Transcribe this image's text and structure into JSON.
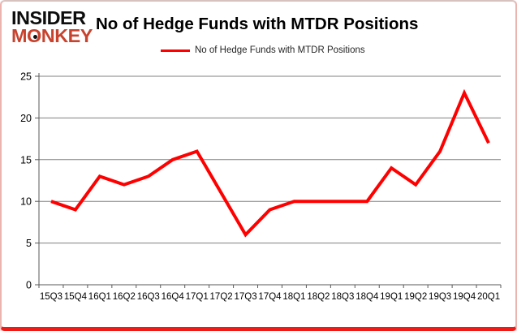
{
  "brand": {
    "line1": "INSIDER",
    "line2": "MONKEY",
    "brand_color": "#c8432e",
    "text_color": "#0d0d0d"
  },
  "header": {
    "title": "No of Hedge Funds with MTDR Positions"
  },
  "legend": {
    "label": "No of Hedge Funds with MTDR Positions",
    "swatch_color": "#fe0000"
  },
  "chart_data": {
    "type": "line",
    "title": "No of Hedge Funds with MTDR Positions",
    "categories": [
      "15Q3",
      "15Q4",
      "16Q1",
      "16Q2",
      "16Q3",
      "16Q4",
      "17Q1",
      "17Q2",
      "17Q3",
      "17Q4",
      "18Q1",
      "18Q2",
      "18Q3",
      "18Q4",
      "19Q1",
      "19Q2",
      "19Q3",
      "19Q4",
      "20Q1"
    ],
    "series": [
      {
        "name": "No of Hedge Funds with MTDR Positions",
        "color": "#fe0000",
        "line_width": 4,
        "values": [
          10,
          9,
          13,
          12,
          13,
          15,
          16,
          11,
          6,
          9,
          10,
          10,
          10,
          10,
          14,
          12,
          16,
          23,
          17
        ]
      }
    ],
    "xlabel": "",
    "ylabel": "",
    "ylim": [
      0,
      25
    ],
    "yticks": [
      0,
      5,
      10,
      15,
      20,
      25
    ],
    "grid": true,
    "grid_color": "#808080",
    "axis_color": "#595959",
    "tick_label_color": "#000000",
    "legend_position": "top"
  }
}
